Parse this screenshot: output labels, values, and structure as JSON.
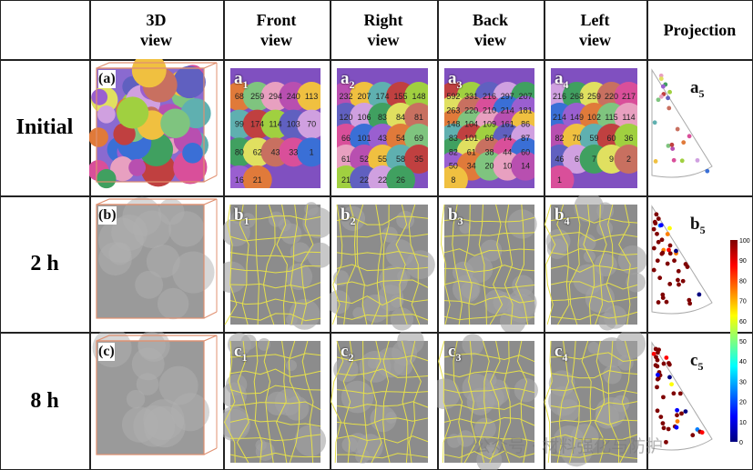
{
  "headers": [
    "3D\nview",
    "Front\nview",
    "Right\nview",
    "Back\nview",
    "Left\nview",
    "Projection"
  ],
  "rows": [
    {
      "label": "Initial",
      "panels": [
        "(a)",
        "a1",
        "a2",
        "a3",
        "a4",
        "a5"
      ]
    },
    {
      "label": "2 h",
      "panels": [
        "(b)",
        "b1",
        "b2",
        "b3",
        "b4",
        "b5"
      ]
    },
    {
      "label": "8 h",
      "panels": [
        "(c)",
        "c1",
        "c2",
        "c3",
        "c4",
        "c5"
      ]
    }
  ],
  "grain_labels": {
    "front": [
      "68",
      "259",
      "294",
      "240",
      "113",
      "99",
      "174",
      "114",
      "103",
      "70",
      "80",
      "62",
      "43",
      "33",
      "1",
      "16",
      "21"
    ],
    "right": [
      "232",
      "207",
      "174",
      "155",
      "148",
      "120",
      "106",
      "83",
      "84",
      "81",
      "66",
      "101",
      "43",
      "54",
      "69",
      "61",
      "52",
      "55",
      "58",
      "35",
      "21",
      "22",
      "22",
      "26"
    ],
    "back": [
      "592",
      "331",
      "216",
      "297",
      "207",
      "263",
      "220",
      "210",
      "214",
      "181",
      "148",
      "104",
      "109",
      "161",
      "86",
      "83",
      "101",
      "66",
      "74",
      "87",
      "82",
      "61",
      "38",
      "44",
      "60",
      "50",
      "34",
      "20",
      "10",
      "14",
      "8"
    ],
    "left": [
      "216",
      "268",
      "259",
      "220",
      "217",
      "214",
      "149",
      "102",
      "115",
      "114",
      "82",
      "70",
      "59",
      "60",
      "36",
      "46",
      "6",
      "7",
      "9",
      "2",
      "1"
    ]
  },
  "colorbar": {
    "ticks": [
      "0",
      "10",
      "20",
      "30",
      "40",
      "50",
      "60",
      "70",
      "80",
      "90",
      "100"
    ],
    "colors": [
      "#00007f",
      "#0000ff",
      "#007fff",
      "#00ffff",
      "#7fff7f",
      "#ffff00",
      "#ff7f00",
      "#ff0000",
      "#7f0000"
    ]
  },
  "boundary_color": "#e6e04a",
  "watermark": "公众号 · 材料强化与防护"
}
